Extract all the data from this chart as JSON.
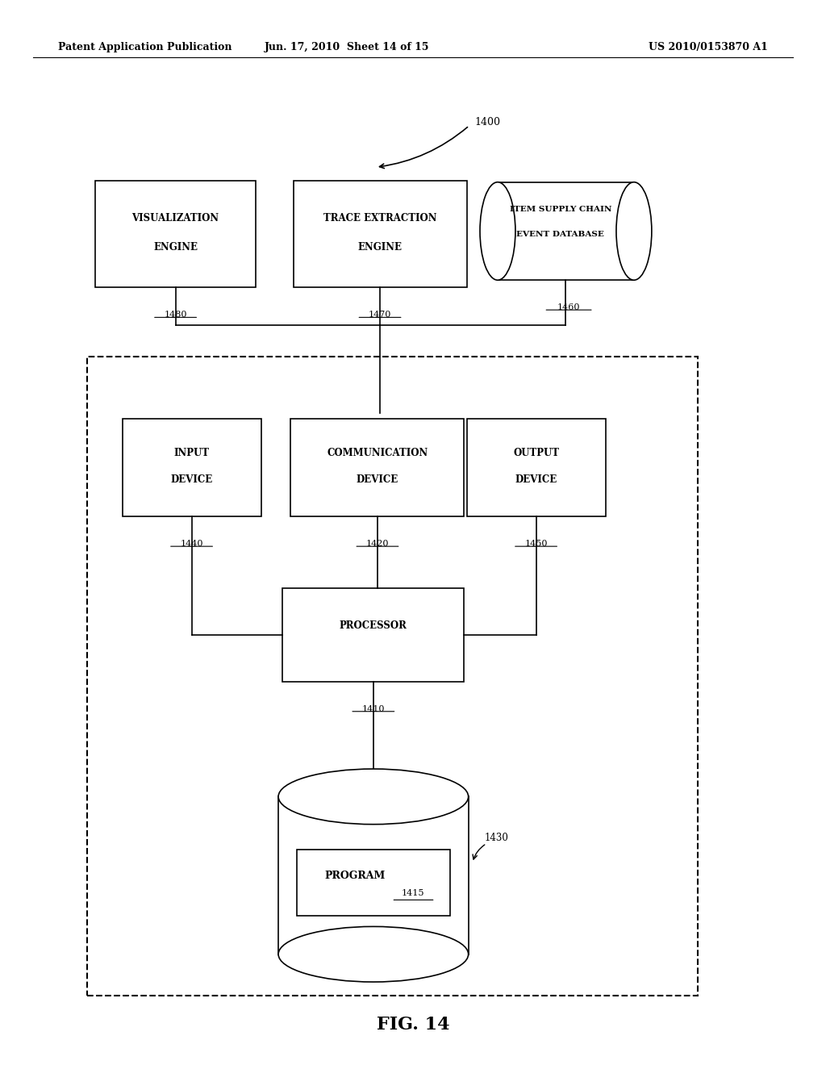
{
  "header_left": "Patent Application Publication",
  "header_mid": "Jun. 17, 2010  Sheet 14 of 15",
  "header_right": "US 2010/0153870 A1",
  "fig_label": "FIG. 14",
  "bg_color": "#ffffff"
}
